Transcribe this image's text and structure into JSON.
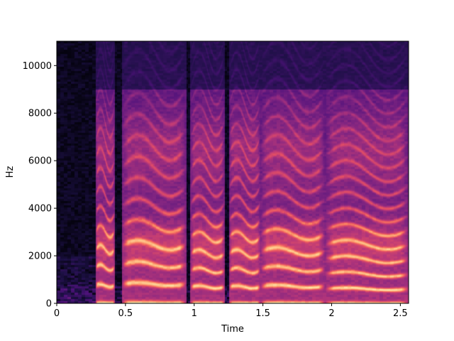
{
  "chart_data": {
    "type": "heatmap",
    "title": "",
    "xlabel": "Time",
    "ylabel": "Hz",
    "xlim": [
      0,
      2.56
    ],
    "ylim": [
      0,
      11025
    ],
    "x_ticks": [
      {
        "value": 0,
        "label": "0"
      },
      {
        "value": 0.5,
        "label": "0.5"
      },
      {
        "value": 1,
        "label": "1"
      },
      {
        "value": 1.5,
        "label": "1.5"
      },
      {
        "value": 2,
        "label": "2"
      },
      {
        "value": 2.5,
        "label": "2.5"
      }
    ],
    "y_ticks": [
      {
        "value": 0,
        "label": "0"
      },
      {
        "value": 2000,
        "label": "2000"
      },
      {
        "value": 4000,
        "label": "4000"
      },
      {
        "value": 6000,
        "label": "6000"
      },
      {
        "value": 8000,
        "label": "8000"
      },
      {
        "value": 10000,
        "label": "10000"
      }
    ],
    "colormap": "magma",
    "colors": {
      "background": "#ffffff",
      "low": "#000004",
      "mid": "#b73779",
      "high": "#fcfdbf"
    },
    "silence_gaps_s": [
      [
        0.0,
        0.28
      ],
      [
        0.42,
        0.47
      ],
      [
        0.94,
        0.97
      ],
      [
        1.22,
        1.25
      ]
    ],
    "voiced_segments": [
      {
        "start": 0.28,
        "end": 0.42,
        "f0": 760
      },
      {
        "start": 0.47,
        "end": 0.94,
        "f0": 820
      },
      {
        "start": 0.97,
        "end": 1.22,
        "f0": 700
      },
      {
        "start": 1.25,
        "end": 1.48,
        "f0": 700
      },
      {
        "start": 1.48,
        "end": 1.95,
        "f0": 730
      },
      {
        "start": 1.95,
        "end": 2.56,
        "f0": 620
      }
    ],
    "grid": false,
    "legend": "none"
  }
}
